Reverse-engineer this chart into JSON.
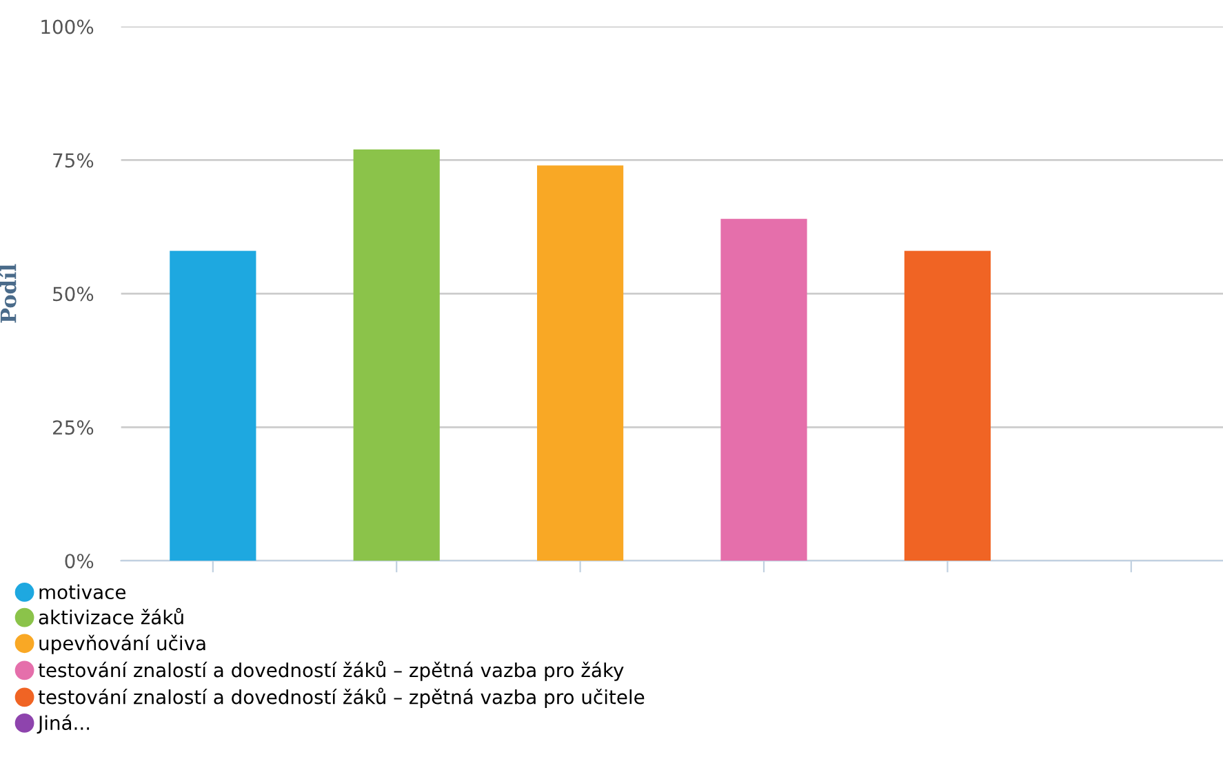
{
  "chart_data": {
    "type": "bar",
    "ylabel": "Podíl",
    "categories": [
      null,
      null,
      null,
      null,
      null,
      null
    ],
    "series": [
      {
        "name": "motivace",
        "color": "#1ea8e0",
        "values": [
          58,
          null,
          null,
          null,
          null,
          null
        ]
      },
      {
        "name": "aktivizace žáků",
        "color": "#8bc34a",
        "values": [
          null,
          77,
          null,
          null,
          null,
          null
        ]
      },
      {
        "name": "upevňování učiva",
        "color": "#f9a825",
        "values": [
          null,
          null,
          74,
          null,
          null,
          null
        ]
      },
      {
        "name": "testování znalostí a dovedností žáků – zpětná vazba pro žáky",
        "color": "#e56fab",
        "values": [
          null,
          null,
          null,
          64,
          null,
          null
        ]
      },
      {
        "name": "testování znalostí a dovedností žáků – zpětná vazba pro učitele",
        "color": "#f06424",
        "values": [
          null,
          null,
          null,
          null,
          58,
          null
        ]
      },
      {
        "name": "Jiná...",
        "color": "#8e44ad",
        "values": [
          null,
          null,
          null,
          null,
          null,
          0
        ]
      }
    ],
    "ylim": [
      0,
      100
    ],
    "yticks": [
      {
        "value": 0,
        "label": "0%"
      },
      {
        "value": 25,
        "label": "25%"
      },
      {
        "value": 50,
        "label": "50%"
      },
      {
        "value": 75,
        "label": "75%"
      },
      {
        "value": 100,
        "label": "100%"
      }
    ],
    "grid": "y",
    "legend": "bottom left",
    "marker": "circle"
  }
}
